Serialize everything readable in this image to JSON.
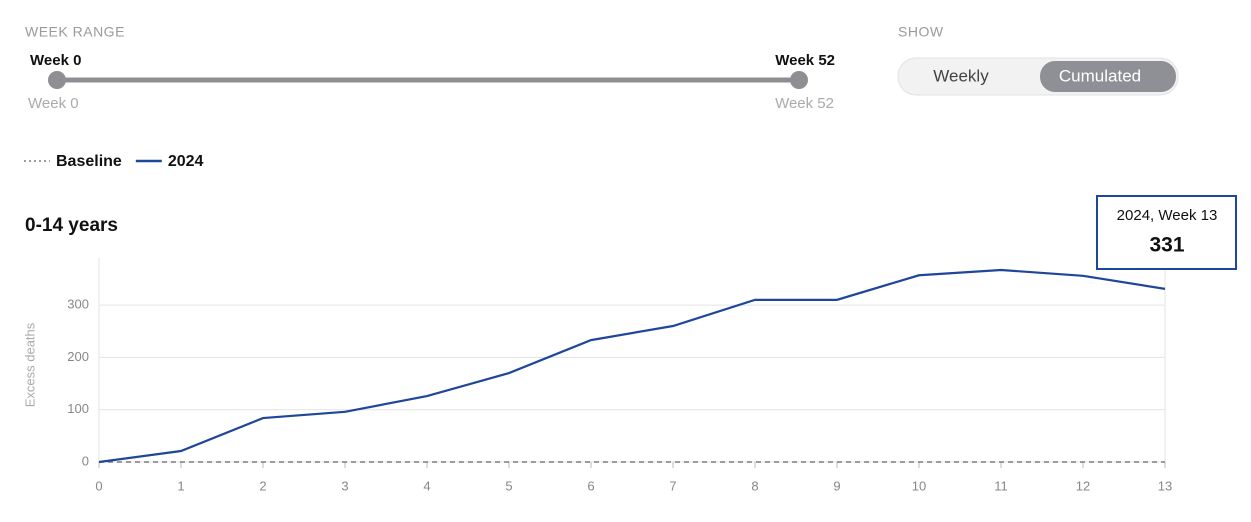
{
  "controls": {
    "week_range": {
      "label": "WEEK RANGE",
      "start": "Week 0",
      "end": "Week 52",
      "min_label": "Week 0",
      "max_label": "Week 52"
    },
    "show": {
      "label": "SHOW",
      "options": [
        "Weekly",
        "Cumulated"
      ],
      "selected": "Cumulated"
    }
  },
  "chart_data": {
    "type": "line",
    "title": "0-14 years",
    "y_label": "Excess deaths",
    "x": [
      0,
      1,
      2,
      3,
      4,
      5,
      6,
      7,
      8,
      9,
      10,
      11,
      12,
      13
    ],
    "xlim": [
      0,
      13
    ],
    "xticks": [
      0,
      1,
      2,
      3,
      4,
      5,
      6,
      7,
      8,
      9,
      10,
      11,
      12,
      13
    ],
    "ylim": [
      0,
      390
    ],
    "yticks": [
      0,
      100,
      200,
      300
    ],
    "grid": true,
    "series": [
      {
        "name": "Baseline",
        "color": "#7a7a80",
        "style": "dashed",
        "values": [
          0,
          0,
          0,
          0,
          0,
          0,
          0,
          0,
          0,
          0,
          0,
          0,
          0,
          0
        ]
      },
      {
        "name": "2024",
        "color": "#1f4799",
        "style": "solid",
        "values": [
          0,
          21,
          84,
          96,
          126,
          170,
          233,
          260,
          310,
          310,
          357,
          367,
          356,
          331
        ]
      }
    ],
    "tooltip": {
      "title": "2024, Week 13"
    }
  }
}
